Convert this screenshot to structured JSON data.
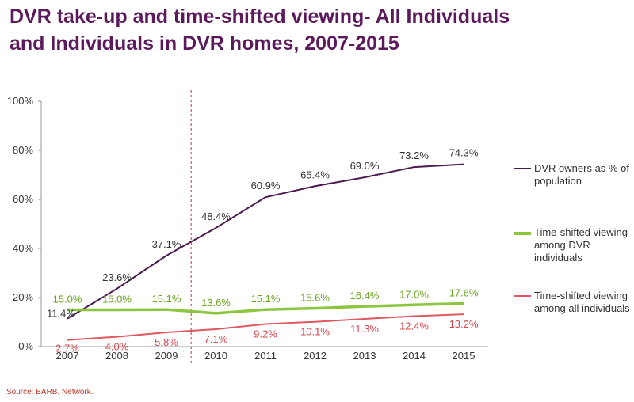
{
  "title_lines": [
    "DVR take-up and time-shifted viewing- All Individuals",
    "and Individuals in DVR homes, 2007-2015"
  ],
  "source": "Source: BARB, Network.",
  "chart_data": {
    "type": "line",
    "categories": [
      "2007",
      "2008",
      "2009",
      "2010",
      "2011",
      "2012",
      "2013",
      "2014",
      "2015"
    ],
    "ylim": [
      0,
      100
    ],
    "yticks": [
      "0%",
      "20%",
      "40%",
      "60%",
      "80%",
      "100%"
    ],
    "grid": false,
    "legend_position": "right",
    "divider_after": "2009",
    "series": [
      {
        "name": "DVR owners as % of population",
        "color": "#4b1a4f",
        "values": [
          11.4,
          23.6,
          37.1,
          48.4,
          60.9,
          65.4,
          69.0,
          73.2,
          74.3
        ],
        "labels": [
          "11.4%",
          "23.6%",
          "37.1%",
          "48.4%",
          "60.9%",
          "65.4%",
          "69.0%",
          "73.2%",
          "74.3%"
        ]
      },
      {
        "name": "Time-shifted viewing among DVR individuals",
        "color": "#8cc63f",
        "label_color": "#6aa51f",
        "values": [
          15.0,
          15.0,
          15.1,
          13.6,
          15.1,
          15.6,
          16.4,
          17.0,
          17.6
        ],
        "labels": [
          "15.0%",
          "15.0%",
          "15.1%",
          "13.6%",
          "15.1%",
          "15.6%",
          "16.4%",
          "17.0%",
          "17.6%"
        ]
      },
      {
        "name": "Time-shifted viewing among all individuals",
        "color": "#e0585f",
        "label_color": "#d9474f",
        "values": [
          2.7,
          4.0,
          5.8,
          7.1,
          9.2,
          10.1,
          11.3,
          12.4,
          13.2
        ],
        "labels": [
          "2.7%",
          "4.0%",
          "5.8%",
          "7.1%",
          "9.2%",
          "10.1%",
          "11.3%",
          "12.4%",
          "13.2%"
        ]
      }
    ]
  },
  "legend": [
    {
      "label": "DVR owners as % of population",
      "color": "#4b1a4f"
    },
    {
      "label": "Time-shifted viewing among DVR individuals",
      "color": "#8cc63f"
    },
    {
      "label": "Time-shifted viewing among all individuals",
      "color": "#e0585f"
    }
  ]
}
